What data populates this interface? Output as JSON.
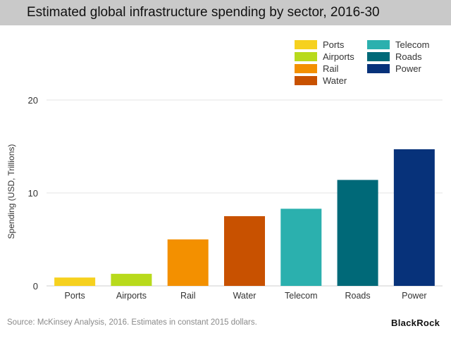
{
  "header": {
    "title": "Estimated global infrastructure spending by sector, 2016-30"
  },
  "colors": {
    "Ports": "#f6d11f",
    "Airports": "#b8da1c",
    "Rail": "#f39000",
    "Water": "#c85100",
    "Telecom": "#2bb0ae",
    "Roads": "#006978",
    "Power": "#07327a"
  },
  "legend": {
    "col1": [
      "Ports",
      "Airports",
      "Rail",
      "Water"
    ],
    "col2": [
      "Telecom",
      "Roads",
      "Power"
    ],
    "placement": "top-right"
  },
  "chart_data": {
    "type": "bar",
    "title": "Estimated global infrastructure spending by sector, 2016-30",
    "xlabel": "",
    "ylabel": "Spending (USD, Trillions)",
    "categories": [
      "Ports",
      "Airports",
      "Rail",
      "Water",
      "Telecom",
      "Roads",
      "Power"
    ],
    "values": [
      0.9,
      1.3,
      5.0,
      7.5,
      8.3,
      11.4,
      14.7
    ],
    "ylim": [
      0,
      20
    ],
    "yticks": [
      0,
      10,
      20
    ],
    "grid": "horizontal"
  },
  "footer": {
    "source": "Source:  McKinsey Analysis, 2016. Estimates in constant 2015 dollars.",
    "logo": "BlackRock"
  }
}
